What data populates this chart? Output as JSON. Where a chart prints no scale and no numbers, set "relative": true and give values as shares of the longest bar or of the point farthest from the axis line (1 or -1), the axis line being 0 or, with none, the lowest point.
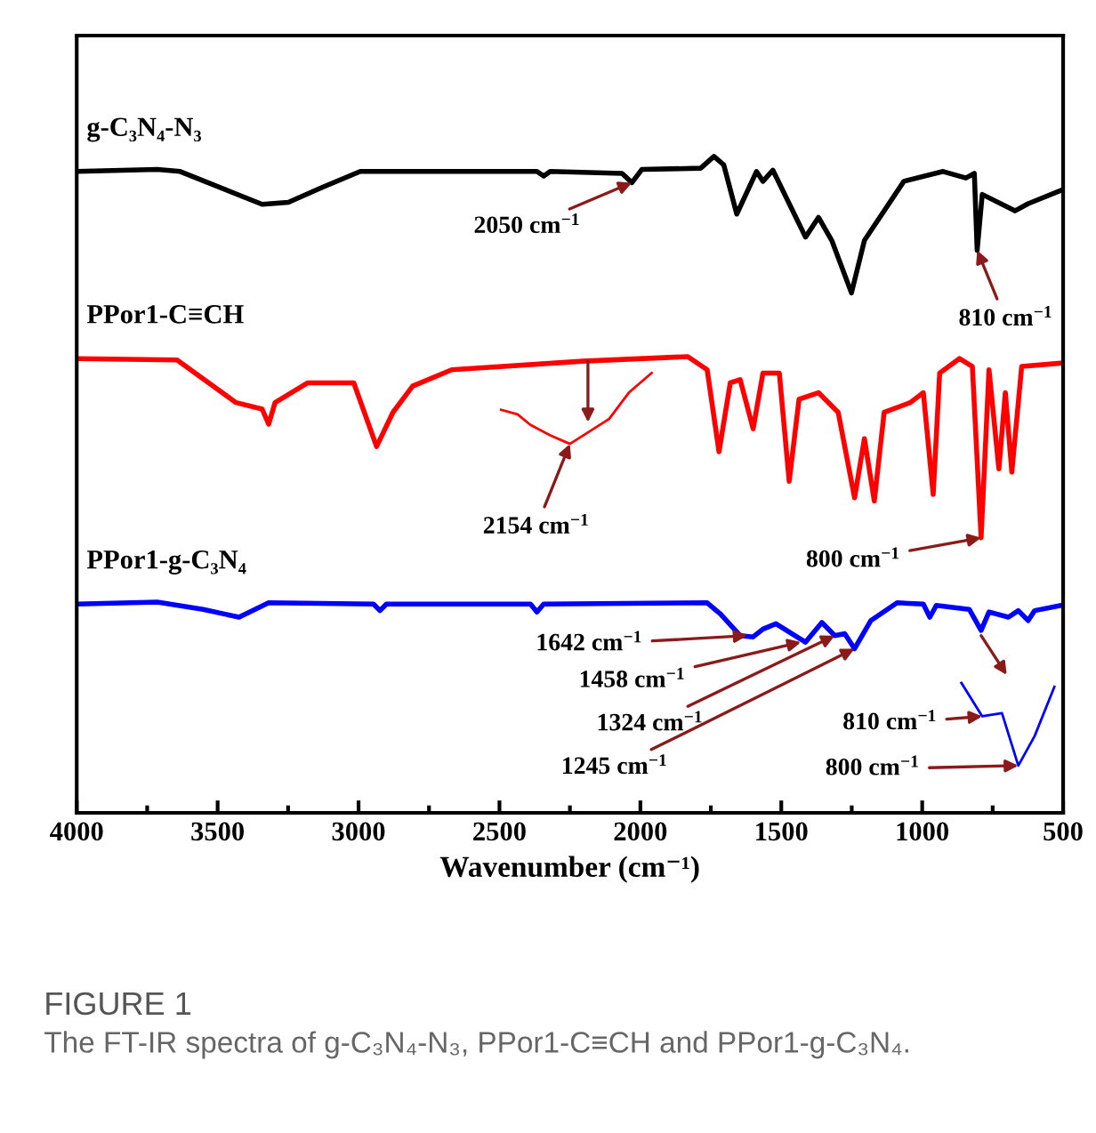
{
  "chart_data": {
    "type": "line",
    "relative": true,
    "xlabel": "Wavenumber (cm⁻¹)",
    "xlim": [
      4000,
      500
    ],
    "xticks": [
      4000,
      3500,
      3000,
      2500,
      2000,
      1500,
      1000,
      500
    ],
    "grid": false,
    "legend": false,
    "marker": "none",
    "line_style": "solid",
    "tick_labels": "x",
    "series": [
      {
        "name": "g-C₃N₄-N₃",
        "color": "#000000",
        "x": [
          4000,
          3714,
          3633,
          3342,
          3249,
          3133,
          2994,
          2367,
          2343,
          2320,
          2065,
          2030,
          1995,
          1786,
          1739,
          1704,
          1658,
          1588,
          1565,
          1530,
          1414,
          1368,
          1321,
          1251,
          1205,
          1065,
          926,
          845,
          815,
          805,
          787,
          671,
          624,
          508
        ],
        "values": [
          0.977,
          0.98,
          0.977,
          0.927,
          0.93,
          0.952,
          0.977,
          0.977,
          0.97,
          0.977,
          0.974,
          0.96,
          0.98,
          0.982,
          1.0,
          0.987,
          0.912,
          0.977,
          0.962,
          0.979,
          0.877,
          0.907,
          0.872,
          0.792,
          0.872,
          0.962,
          0.977,
          0.967,
          0.974,
          0.857,
          0.942,
          0.917,
          0.928,
          0.948
        ]
      },
      {
        "name": "PPor1-C≡CH",
        "color": "#ff0000",
        "x": [
          4000,
          3644,
          3435,
          3342,
          3319,
          3296,
          3180,
          3017,
          2936,
          2878,
          2808,
          2669,
          2204,
          1832,
          1763,
          1721,
          1681,
          1646,
          1600,
          1565,
          1507,
          1472,
          1437,
          1368,
          1298,
          1240,
          1205,
          1170,
          1135,
          1042,
          996,
          961,
          938,
          868,
          822,
          791,
          763,
          728,
          705,
          682,
          647,
          508
        ],
        "values": [
          0.692,
          0.69,
          0.625,
          0.615,
          0.592,
          0.625,
          0.655,
          0.655,
          0.558,
          0.61,
          0.65,
          0.675,
          0.688,
          0.695,
          0.675,
          0.55,
          0.655,
          0.66,
          0.585,
          0.67,
          0.67,
          0.505,
          0.63,
          0.64,
          0.61,
          0.48,
          0.57,
          0.475,
          0.61,
          0.625,
          0.64,
          0.485,
          0.67,
          0.692,
          0.68,
          0.419,
          0.675,
          0.524,
          0.64,
          0.519,
          0.68,
          0.685
        ]
      },
      {
        "color": "#ff0000",
        "x": [
          2494,
          2436,
          2390,
          2320,
          2250,
          2111,
          2041,
          1960
        ],
        "values": [
          0.614,
          0.607,
          0.591,
          0.575,
          0.562,
          0.6,
          0.64,
          0.67
        ]
      },
      {
        "name": "PPor1-g-C₃N₄",
        "color": "#0000ff",
        "x": [
          4000,
          3714,
          3551,
          3424,
          3319,
          2947,
          2924,
          2901,
          2390,
          2367,
          2343,
          1763,
          1716,
          1646,
          1600,
          1565,
          1519,
          1414,
          1356,
          1310,
          1275,
          1240,
          1182,
          1089,
          996,
          973,
          950,
          833,
          791,
          763,
          694,
          659,
          624,
          601,
          508
        ],
        "values": [
          0.318,
          0.321,
          0.31,
          0.298,
          0.32,
          0.318,
          0.308,
          0.318,
          0.318,
          0.306,
          0.318,
          0.32,
          0.303,
          0.27,
          0.268,
          0.28,
          0.288,
          0.26,
          0.29,
          0.27,
          0.273,
          0.25,
          0.293,
          0.32,
          0.318,
          0.298,
          0.316,
          0.31,
          0.278,
          0.306,
          0.298,
          0.308,
          0.293,
          0.308,
          0.316
        ]
      },
      {
        "color": "#0000ff",
        "x": [
          861,
          787,
          717,
          659,
          601,
          531
        ],
        "values": [
          0.198,
          0.147,
          0.152,
          0.072,
          0.117,
          0.192
        ]
      }
    ],
    "annotations": [
      {
        "text": "2050 cm$^{−1}$",
        "x": 2030,
        "y": 0.96
      },
      {
        "text": "810 cm$^{−1}$",
        "x": 805,
        "y": 0.857
      },
      {
        "text": "2154 cm$^{−1}$",
        "x": 2250,
        "y": 0.562
      },
      {
        "text": "800 cm$^{−1}$",
        "x": 791,
        "y": 0.419
      },
      {
        "text": "1642 cm$^{−1}$",
        "x": 1620,
        "y": 0.27
      },
      {
        "text": "1458 cm$^{−1}$",
        "x": 1430,
        "y": 0.26
      },
      {
        "text": "1324 cm$^{−1}$",
        "x": 1310,
        "y": 0.27
      },
      {
        "text": "1245 cm$^{−1}$",
        "x": 1240,
        "y": 0.25
      },
      {
        "text": "810 cm$^{−1}$",
        "x": 787,
        "y": 0.147
      },
      {
        "text": "800 cm$^{−1}$",
        "x": 659,
        "y": 0.072
      },
      "FIGURE 1",
      "The FT-IR spectra of g-C₃N₄-N₃, PPor1-C≡CH and PPor1-g-C₃N₄."
    ]
  }
}
